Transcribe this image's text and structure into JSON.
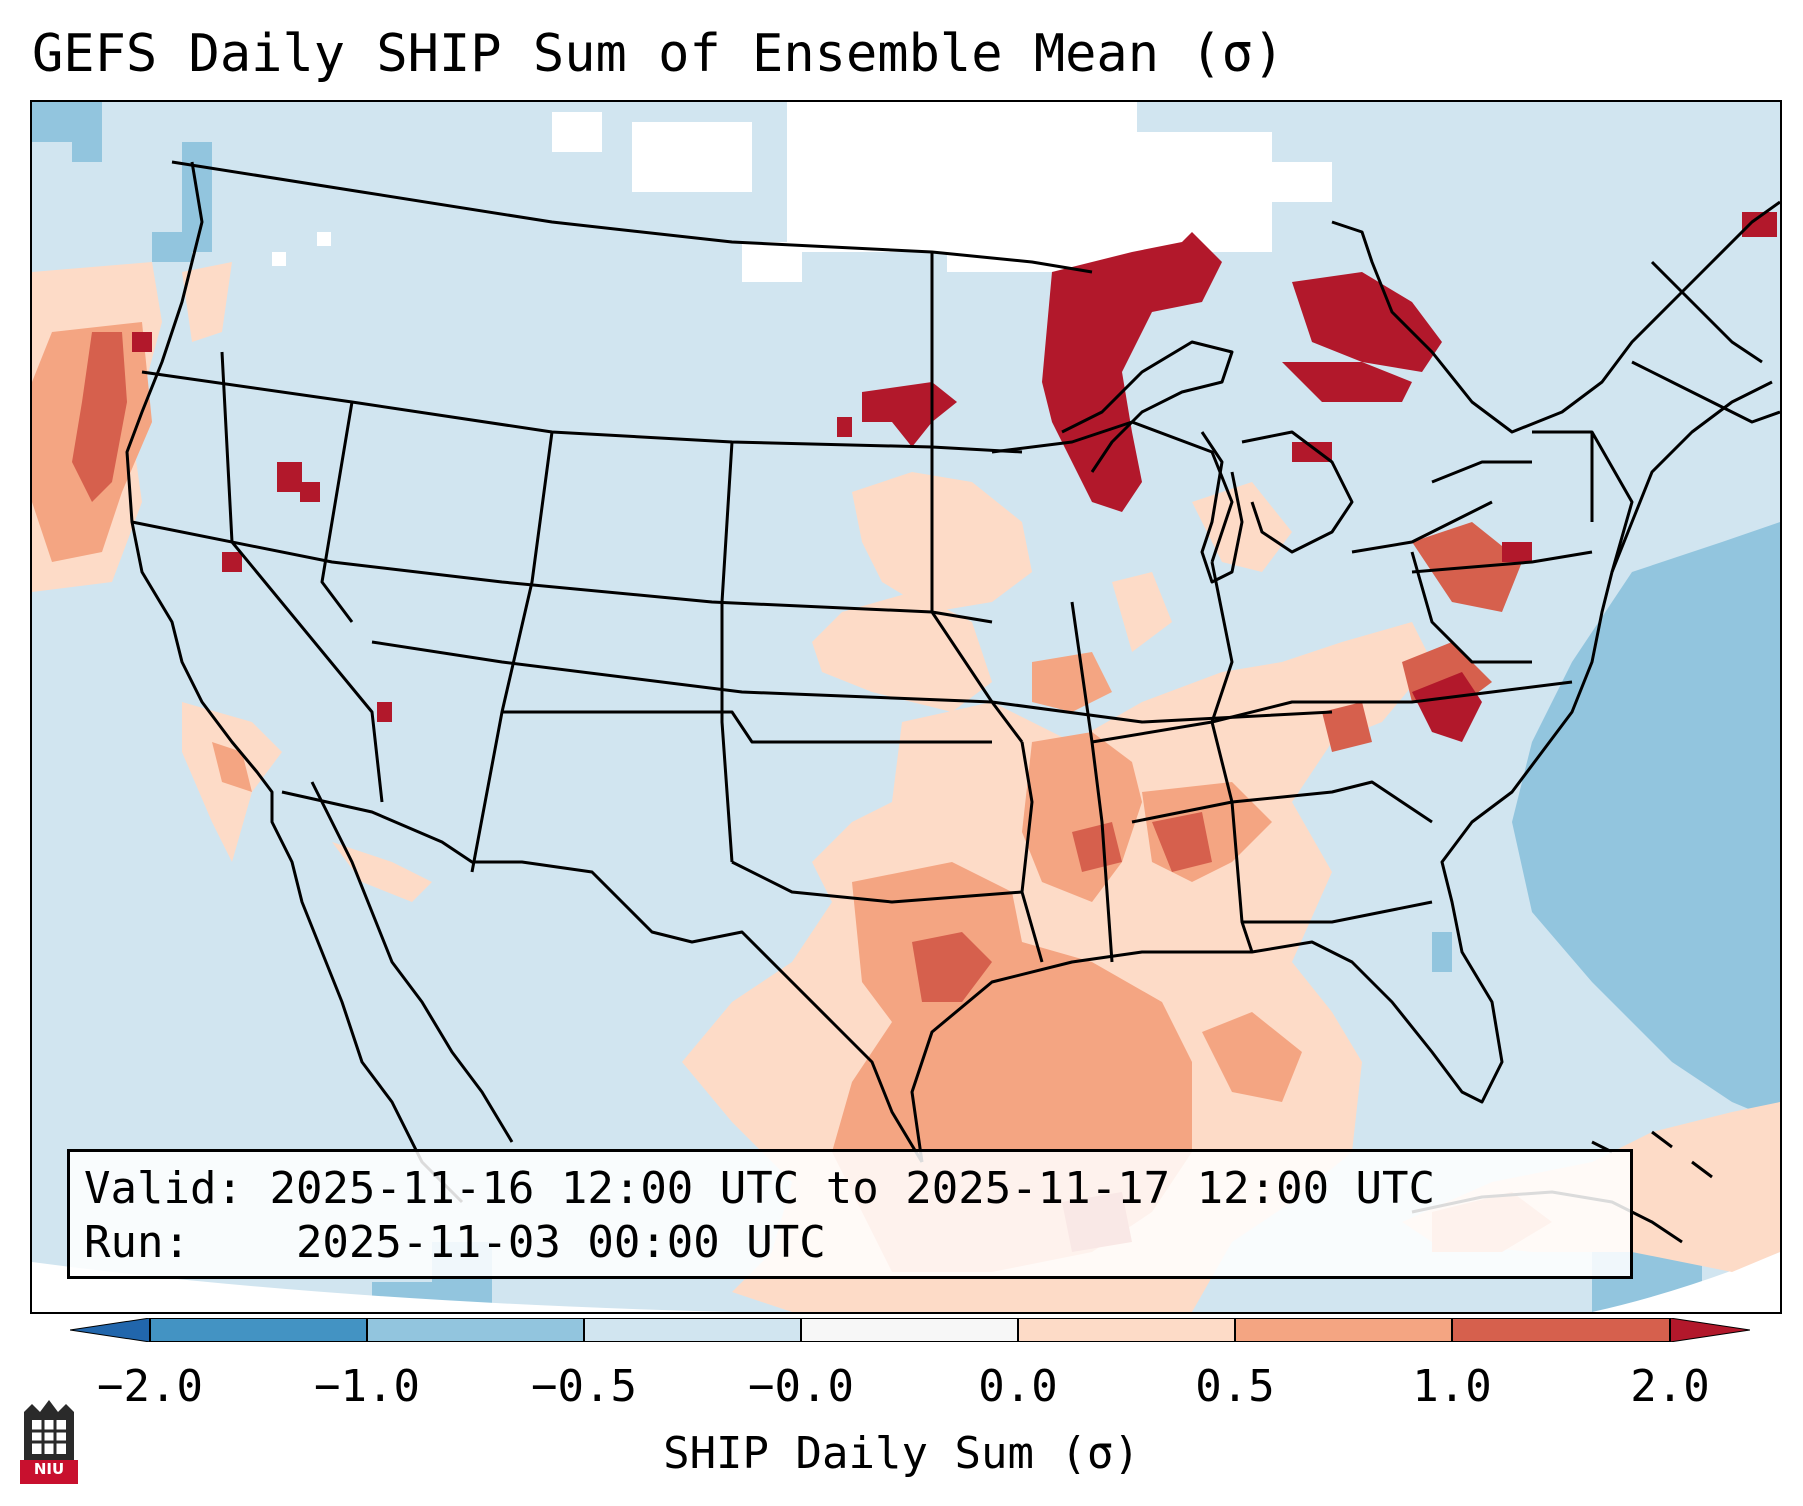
{
  "title": "GEFS Daily SHIP Sum of Ensemble Mean (σ)",
  "info": {
    "valid_label": "Valid:",
    "valid_value": "2025-11-16 12:00 UTC to 2025-11-17 12:00 UTC",
    "run_label": "Run:",
    "run_value": "2025-11-03 00:00 UTC"
  },
  "colorbar": {
    "label": "SHIP Daily Sum (σ)",
    "ticks": [
      "−2.0",
      "−1.0",
      "−0.5",
      "−0.0",
      "0.0",
      "0.5",
      "1.0",
      "2.0"
    ],
    "colors": [
      "#4393c3",
      "#92c5de",
      "#d1e5f0",
      "#f7f7f7",
      "#fddbc7",
      "#f4a582",
      "#d6604d",
      "#b2182b"
    ]
  },
  "logo": {
    "text": "NIU",
    "color": "#c8102e"
  },
  "legend_colors": {
    "below_neg1": "#92c5de",
    "neg05_to_0": "#d1e5f0",
    "zero": "#ffffff",
    "pos0_to_05": "#fddbc7",
    "pos05_to_1": "#f4a582",
    "pos1_to_2": "#d6604d",
    "above_2": "#b2182b"
  }
}
